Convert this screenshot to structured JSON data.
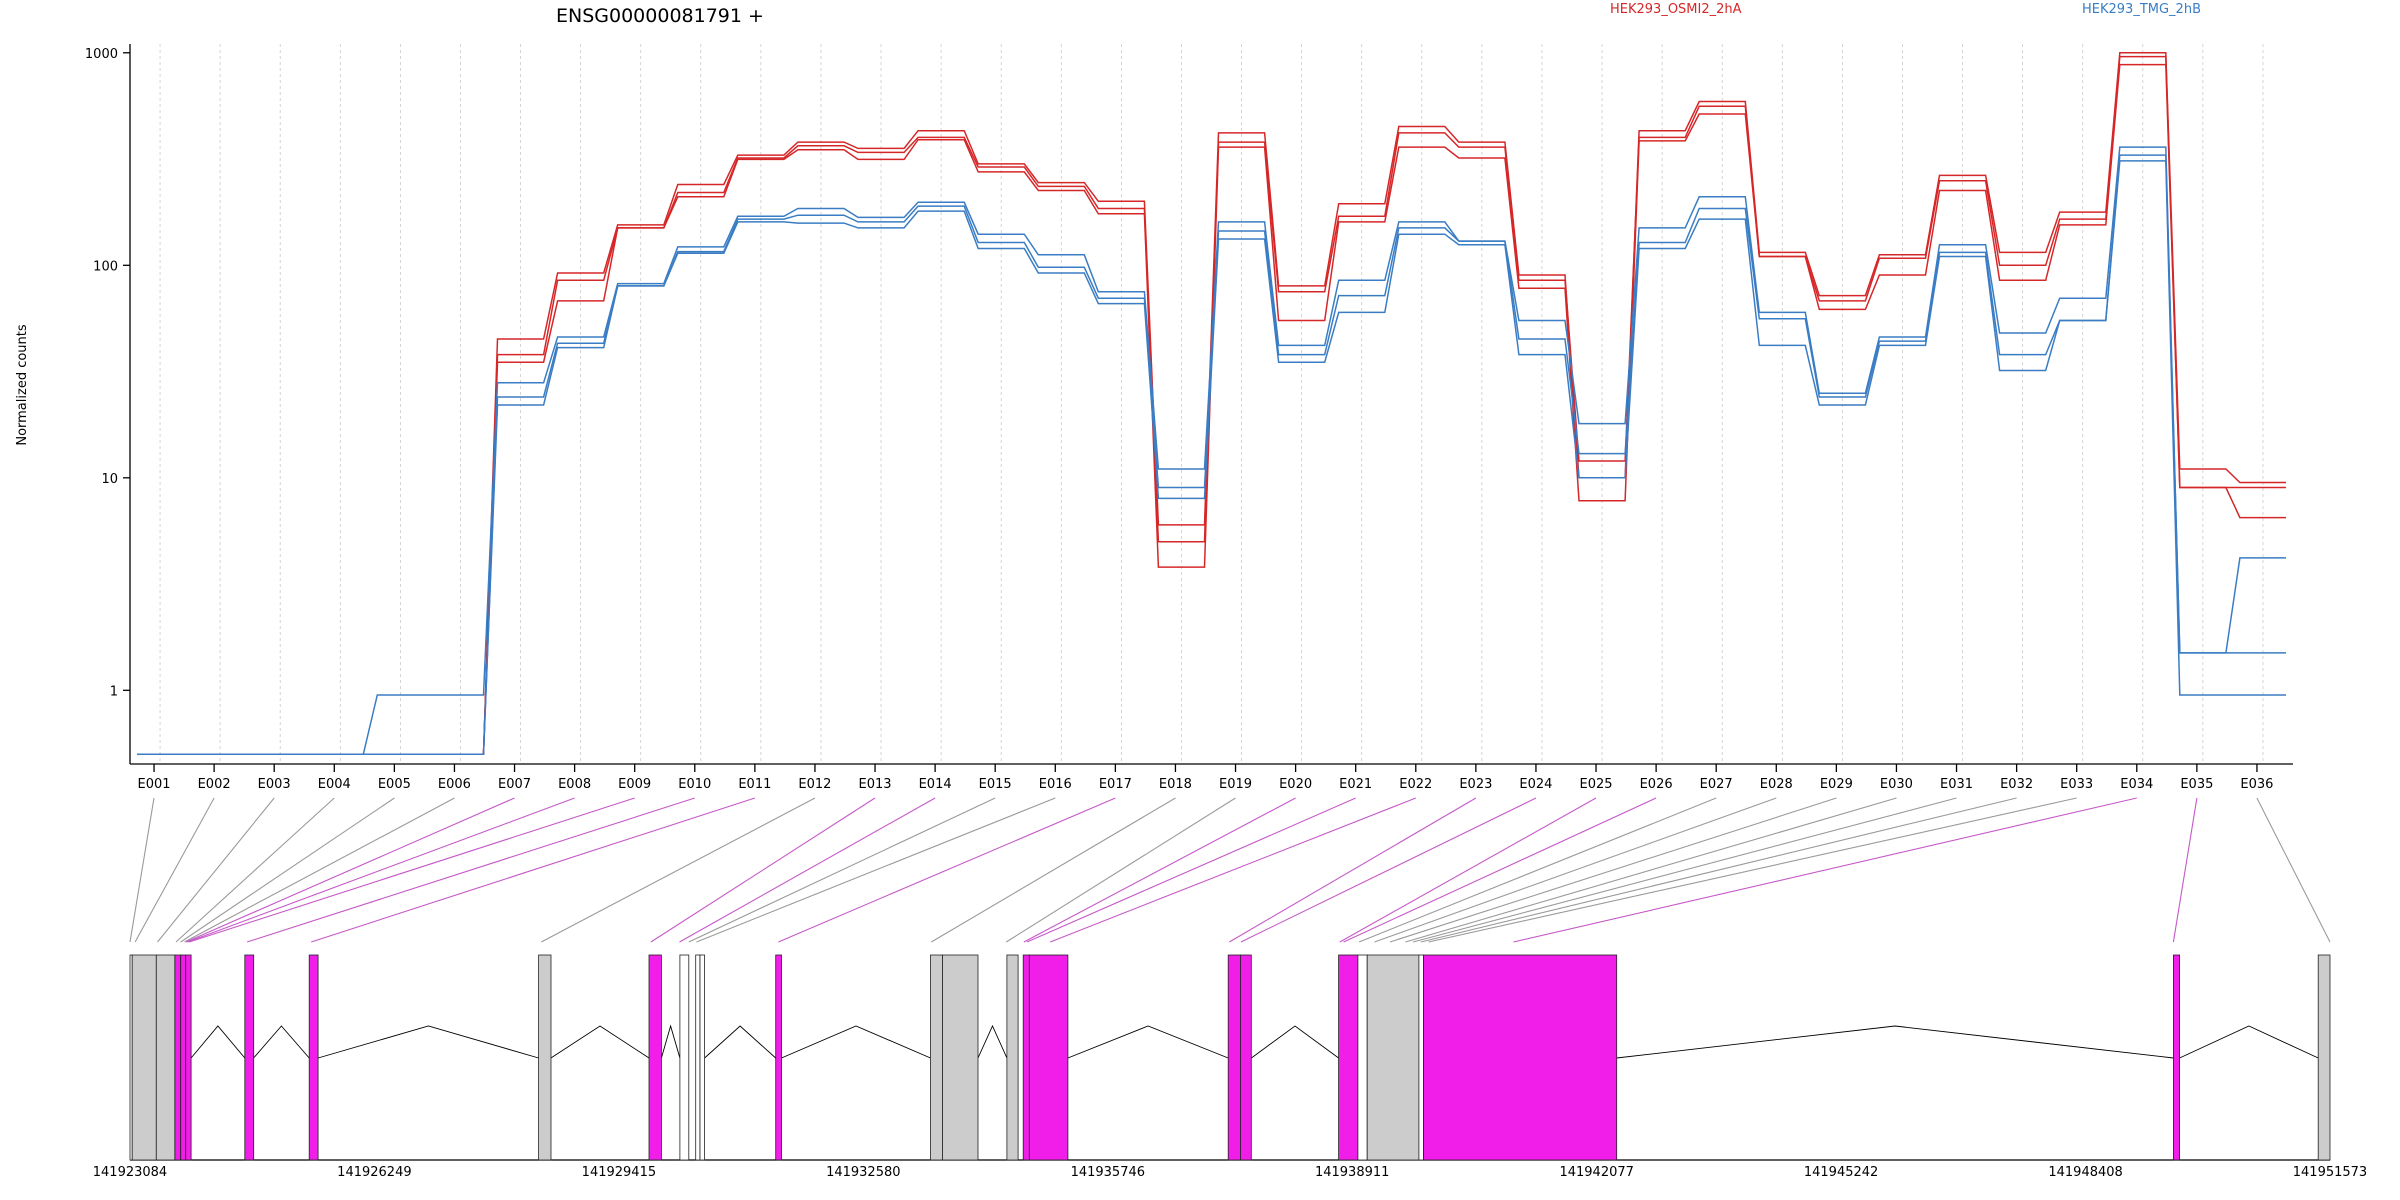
{
  "chart_data": {
    "type": "line",
    "title": "ENSG00000081791 +",
    "ylabel": "Normalized counts",
    "y_scale": "log",
    "ylim": [
      0.45,
      1100
    ],
    "y_ticks": [
      "1",
      "10",
      "100",
      "1000"
    ],
    "y_tick_values": [
      1,
      10,
      100,
      1000
    ],
    "categories": [
      "E001",
      "E002",
      "E003",
      "E004",
      "E005",
      "E006",
      "E007",
      "E008",
      "E009",
      "E010",
      "E011",
      "E012",
      "E013",
      "E014",
      "E015",
      "E016",
      "E017",
      "E018",
      "E019",
      "E020",
      "E021",
      "E022",
      "E023",
      "E024",
      "E025",
      "E026",
      "E027",
      "E028",
      "E029",
      "E030",
      "E031",
      "E032",
      "E033",
      "E034",
      "E035",
      "E036"
    ],
    "grid": "vertical dashed",
    "legend_placement": "top-right",
    "colors": {
      "HEK293_OSMI2_2hA": "#d62728",
      "HEK293_TMG_2hB": "#3a7dc4",
      "differential_exon": "#f01ee8",
      "other_exon": "#cccccc"
    },
    "series": [
      {
        "name": "HEK293_OSMI2_2hA",
        "color": "#d62728",
        "values": [
          0.5,
          0.5,
          0.5,
          0.5,
          0.5,
          0.5,
          45,
          92,
          155,
          240,
          330,
          380,
          355,
          430,
          300,
          245,
          200,
          6,
          420,
          80,
          195,
          450,
          380,
          90,
          10,
          430,
          590,
          115,
          72,
          112,
          265,
          115,
          178,
          1000,
          11,
          9.5
        ]
      },
      {
        "name": "HEK293_OSMI2_2hA",
        "color": "#d62728",
        "values": [
          0.5,
          0.5,
          0.5,
          0.5,
          0.5,
          0.5,
          38,
          85,
          150,
          220,
          320,
          365,
          340,
          400,
          290,
          235,
          185,
          5,
          380,
          75,
          170,
          420,
          360,
          85,
          12,
          400,
          560,
          110,
          68,
          108,
          250,
          100,
          165,
          960,
          9,
          9
        ]
      },
      {
        "name": "HEK293_OSMI2_2hA",
        "color": "#d62728",
        "values": [
          0.5,
          0.5,
          0.5,
          0.5,
          0.5,
          0.5,
          35,
          68,
          150,
          210,
          315,
          350,
          315,
          390,
          275,
          225,
          175,
          3.8,
          360,
          55,
          160,
          360,
          320,
          78,
          7.8,
          385,
          515,
          110,
          62,
          90,
          225,
          85,
          155,
          880,
          9,
          6.5
        ]
      },
      {
        "name": "HEK293_TMG_2hB",
        "color": "#3a7dc4",
        "values": [
          0.5,
          0.5,
          0.5,
          0.5,
          0.95,
          0.95,
          28,
          46,
          82,
          122,
          170,
          185,
          168,
          198,
          140,
          112,
          75,
          11,
          160,
          42,
          85,
          160,
          130,
          55,
          18,
          150,
          210,
          60,
          25,
          46,
          125,
          48,
          70,
          360,
          1.5,
          4.2
        ]
      },
      {
        "name": "HEK293_TMG_2hB",
        "color": "#3a7dc4",
        "values": [
          0.5,
          0.5,
          0.5,
          0.5,
          0.5,
          0.5,
          24,
          43,
          80,
          116,
          165,
          172,
          160,
          190,
          128,
          98,
          70,
          9,
          145,
          38,
          72,
          150,
          130,
          45,
          13,
          128,
          185,
          56,
          24,
          44,
          115,
          38,
          55,
          330,
          1.5,
          1.5
        ]
      },
      {
        "name": "HEK293_TMG_2hB",
        "color": "#3a7dc4",
        "values": [
          0.5,
          0.5,
          0.5,
          0.5,
          0.5,
          0.5,
          22,
          41,
          80,
          114,
          160,
          158,
          150,
          180,
          120,
          92,
          66,
          8,
          133,
          35,
          60,
          140,
          125,
          38,
          10,
          120,
          165,
          42,
          22,
          42,
          110,
          32,
          55,
          310,
          0.95,
          0.95
        ]
      }
    ],
    "gene_model": {
      "tick_labels": [
        "141923084",
        "141926249",
        "141929415",
        "141932580",
        "141935746",
        "141938911",
        "141942077",
        "141945242",
        "141948408",
        "141951573"
      ],
      "tick_values": [
        141923084,
        141926249,
        141929415,
        141932580,
        141935746,
        141938911,
        141942077,
        141945242,
        141948408,
        141951573
      ],
      "range": [
        141923084,
        141951573
      ],
      "exons": [
        {
          "start": 141923084,
          "end": 141923113,
          "diff": false
        },
        {
          "start": 141923113,
          "end": 141923425,
          "diff": false
        },
        {
          "start": 141923425,
          "end": 141923665,
          "diff": false
        },
        {
          "start": 141923665,
          "end": 141923740,
          "diff": true
        },
        {
          "start": 141923740,
          "end": 141923805,
          "diff": true
        },
        {
          "start": 141923805,
          "end": 141923875,
          "diff": true
        },
        {
          "start": 141924570,
          "end": 141924685,
          "diff": true
        },
        {
          "start": 141925405,
          "end": 141925520,
          "diff": true
        },
        {
          "start": 141928375,
          "end": 141928535,
          "diff": false
        },
        {
          "start": 141929805,
          "end": 141929965,
          "diff": true
        },
        {
          "start": 141930205,
          "end": 141930320,
          "diff": false
        },
        {
          "start": 141930410,
          "end": 141930465,
          "diff": false
        },
        {
          "start": 141930465,
          "end": 141930525,
          "diff": false
        },
        {
          "start": 141931445,
          "end": 141931520,
          "diff": true
        },
        {
          "start": 141933450,
          "end": 141933605,
          "diff": false
        },
        {
          "start": 141933605,
          "end": 141934065,
          "diff": false
        },
        {
          "start": 141934440,
          "end": 141934585,
          "diff": false
        },
        {
          "start": 141934650,
          "end": 141934730,
          "diff": true
        },
        {
          "start": 141934730,
          "end": 141935230,
          "diff": true
        },
        {
          "start": 141937305,
          "end": 141937465,
          "diff": true
        },
        {
          "start": 141937465,
          "end": 141937605,
          "diff": true
        },
        {
          "start": 141938735,
          "end": 141938985,
          "diff": true
        },
        {
          "start": 141938985,
          "end": 141939105,
          "diff": false
        },
        {
          "start": 141939105,
          "end": 141939775,
          "diff": false
        },
        {
          "start": 141939775,
          "end": 141939835,
          "diff": false
        },
        {
          "start": 141939835,
          "end": 141942335,
          "diff": true
        },
        {
          "start": 141949545,
          "end": 141949625,
          "diff": true
        },
        {
          "start": 141951420,
          "end": 141951573,
          "diff": false
        }
      ],
      "junctions": [
        {
          "from": 141923875,
          "to": 141924570
        },
        {
          "from": 141924685,
          "to": 141925405
        },
        {
          "from": 141925520,
          "to": 141928375
        },
        {
          "from": 141928535,
          "to": 141929805
        },
        {
          "from": 141929965,
          "to": 141930205
        },
        {
          "from": 141930525,
          "to": 141931445
        },
        {
          "from": 141931520,
          "to": 141933450
        },
        {
          "from": 141934065,
          "to": 141934440
        },
        {
          "from": 141935230,
          "to": 141937305
        },
        {
          "from": 141937605,
          "to": 141938735
        },
        {
          "from": 141942335,
          "to": 141949545
        },
        {
          "from": 141949625,
          "to": 141951420
        }
      ],
      "bin_links": [
        {
          "bin": "E001",
          "pos": 141923084,
          "diff": false
        },
        {
          "bin": "E002",
          "pos": 141923150,
          "diff": false
        },
        {
          "bin": "E003",
          "pos": 141923440,
          "diff": false
        },
        {
          "bin": "E004",
          "pos": 141923680,
          "diff": false
        },
        {
          "bin": "E005",
          "pos": 141923740,
          "diff": false
        },
        {
          "bin": "E006",
          "pos": 141923790,
          "diff": false
        },
        {
          "bin": "E007",
          "pos": 141923810,
          "diff": true
        },
        {
          "bin": "E008",
          "pos": 141923830,
          "diff": true
        },
        {
          "bin": "E009",
          "pos": 141923850,
          "diff": true
        },
        {
          "bin": "E010",
          "pos": 141924600,
          "diff": true
        },
        {
          "bin": "E011",
          "pos": 141925430,
          "diff": true
        },
        {
          "bin": "E012",
          "pos": 141928410,
          "diff": false
        },
        {
          "bin": "E013",
          "pos": 141929830,
          "diff": true
        },
        {
          "bin": "E014",
          "pos": 141930200,
          "diff": true
        },
        {
          "bin": "E015",
          "pos": 141930320,
          "diff": false
        },
        {
          "bin": "E016",
          "pos": 141930420,
          "diff": false
        },
        {
          "bin": "E017",
          "pos": 141931480,
          "diff": true
        },
        {
          "bin": "E018",
          "pos": 141933460,
          "diff": false
        },
        {
          "bin": "E019",
          "pos": 141934430,
          "diff": false
        },
        {
          "bin": "E020",
          "pos": 141934660,
          "diff": true
        },
        {
          "bin": "E021",
          "pos": 141934700,
          "diff": true
        },
        {
          "bin": "E022",
          "pos": 141935000,
          "diff": true
        },
        {
          "bin": "E023",
          "pos": 141937320,
          "diff": true
        },
        {
          "bin": "E024",
          "pos": 141937470,
          "diff": true
        },
        {
          "bin": "E025",
          "pos": 141938750,
          "diff": true
        },
        {
          "bin": "E026",
          "pos": 141938800,
          "diff": true
        },
        {
          "bin": "E027",
          "pos": 141939000,
          "diff": false
        },
        {
          "bin": "E028",
          "pos": 141939200,
          "diff": false
        },
        {
          "bin": "E029",
          "pos": 141939400,
          "diff": false
        },
        {
          "bin": "E030",
          "pos": 141939600,
          "diff": false
        },
        {
          "bin": "E031",
          "pos": 141939700,
          "diff": false
        },
        {
          "bin": "E032",
          "pos": 141939800,
          "diff": false
        },
        {
          "bin": "E033",
          "pos": 141939900,
          "diff": false
        },
        {
          "bin": "E034",
          "pos": 141941000,
          "diff": true
        },
        {
          "bin": "E035",
          "pos": 141949545,
          "diff": true
        },
        {
          "bin": "E036",
          "pos": 141951573,
          "diff": false
        }
      ]
    }
  }
}
